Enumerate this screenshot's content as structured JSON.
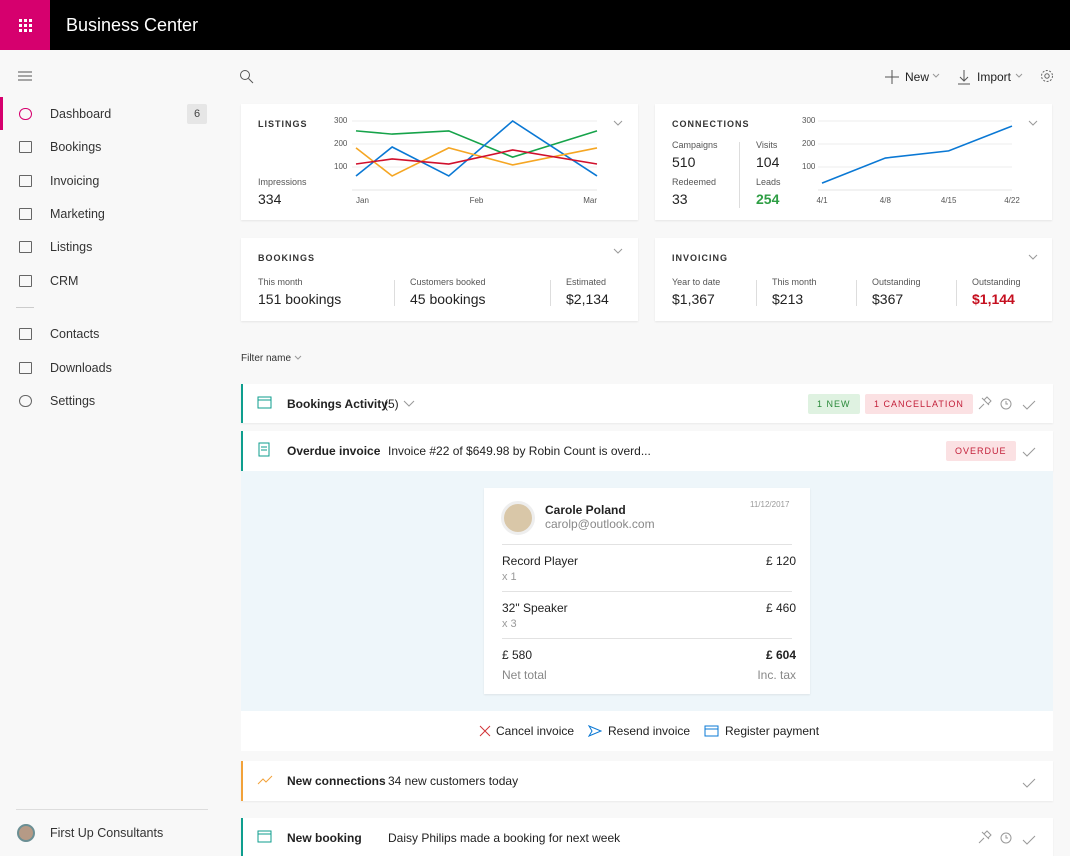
{
  "header": {
    "title": "Business Center"
  },
  "nav": {
    "items": [
      {
        "label": "Dashboard",
        "badge": 6
      },
      {
        "label": "Bookings"
      },
      {
        "label": "Invoicing"
      },
      {
        "label": "Marketing"
      },
      {
        "label": "Listings"
      },
      {
        "label": "CRM"
      },
      {
        "label": "Contacts"
      },
      {
        "label": "Downloads"
      },
      {
        "label": "Settings"
      }
    ],
    "account": "First Up Consultants"
  },
  "toolbar": {
    "new": "New",
    "import": "Import"
  },
  "listings": {
    "title": "LISTINGS",
    "metric_label": "Impressions",
    "metric": 334,
    "chart": {
      "type": "line",
      "x": [
        0,
        0.3,
        0.77,
        1.3,
        2
      ],
      "xlim": [
        0,
        2
      ],
      "xticks": [
        {
          "value": 0,
          "label": "Jan"
        },
        {
          "value": 1,
          "label": "Feb"
        },
        {
          "value": 2,
          "label": "Mar"
        }
      ],
      "ylim": [
        0,
        300
      ],
      "yticks": [
        100,
        200,
        300
      ],
      "series": [
        {
          "color": "#16a34a",
          "values": [
            257,
            243,
            257,
            143,
            257
          ]
        },
        {
          "color": "#0a78d4",
          "values": [
            61,
            187,
            61,
            300,
            61
          ]
        },
        {
          "color": "#f5a623",
          "values": [
            183,
            61,
            183,
            109,
            183
          ]
        },
        {
          "color": "#d0102c",
          "values": [
            113,
            135,
            113,
            174,
            113
          ]
        }
      ]
    }
  },
  "connections": {
    "title": "CONNECTIONS",
    "stats": [
      {
        "label": "Campaigns",
        "value": 510
      },
      {
        "label": "Visits",
        "value": 104
      },
      {
        "label": "Redeemed",
        "value": 33
      },
      {
        "label": "Leads",
        "value": 254
      }
    ],
    "chart": {
      "type": "line",
      "categories": [
        "4/1",
        "4/8",
        "4/15",
        "4/22"
      ],
      "ylim": [
        0,
        300
      ],
      "yticks": [
        100,
        200,
        300
      ],
      "series": [
        {
          "color": "#0a78d4",
          "values": [
            30,
            139,
            170,
            278
          ]
        }
      ]
    }
  },
  "bookings": {
    "title": "BOOKINGS",
    "stats": [
      {
        "label": "This month",
        "value": "151 bookings"
      },
      {
        "label": "Customers booked",
        "value": "45 bookings"
      },
      {
        "label": "Estimated",
        "value": "$2,134"
      }
    ]
  },
  "invoicing": {
    "title": "INVOICING",
    "stats": [
      {
        "label": "Year to date",
        "value": "$1,367"
      },
      {
        "label": "This month",
        "value": "$213"
      },
      {
        "label": "Outstanding",
        "value": "$367"
      },
      {
        "label": "Outstanding",
        "value": "$1,144"
      }
    ]
  },
  "filter": "Filter name",
  "activity": [
    {
      "title": "Bookings Activity",
      "count": "(5)",
      "tags": [
        "1 NEW",
        "1 CANCELLATION"
      ]
    },
    {
      "title": "Overdue invoice",
      "text": "Invoice #22 of $649.98 by Robin Count is overd...",
      "tags": [
        "OVERDUE"
      ]
    },
    {
      "title": "New connections",
      "text": "34 new customers today"
    },
    {
      "title": "New booking",
      "text": "Daisy Philips made a booking for next week"
    }
  ],
  "invoice": {
    "name": "Carole Poland",
    "email": "carolp@outlook.com",
    "date": "11/12/2017",
    "items": [
      {
        "name": "Record Player",
        "qty": "x 1",
        "price": "£ 120"
      },
      {
        "name": "32\" Speaker",
        "qty": "x 3",
        "price": "£ 460"
      }
    ],
    "net": "£ 580",
    "net_label": "Net total",
    "total": "£ 604",
    "total_label": "Inc. tax",
    "actions": [
      "Cancel invoice",
      "Resend invoice",
      "Register payment"
    ]
  }
}
